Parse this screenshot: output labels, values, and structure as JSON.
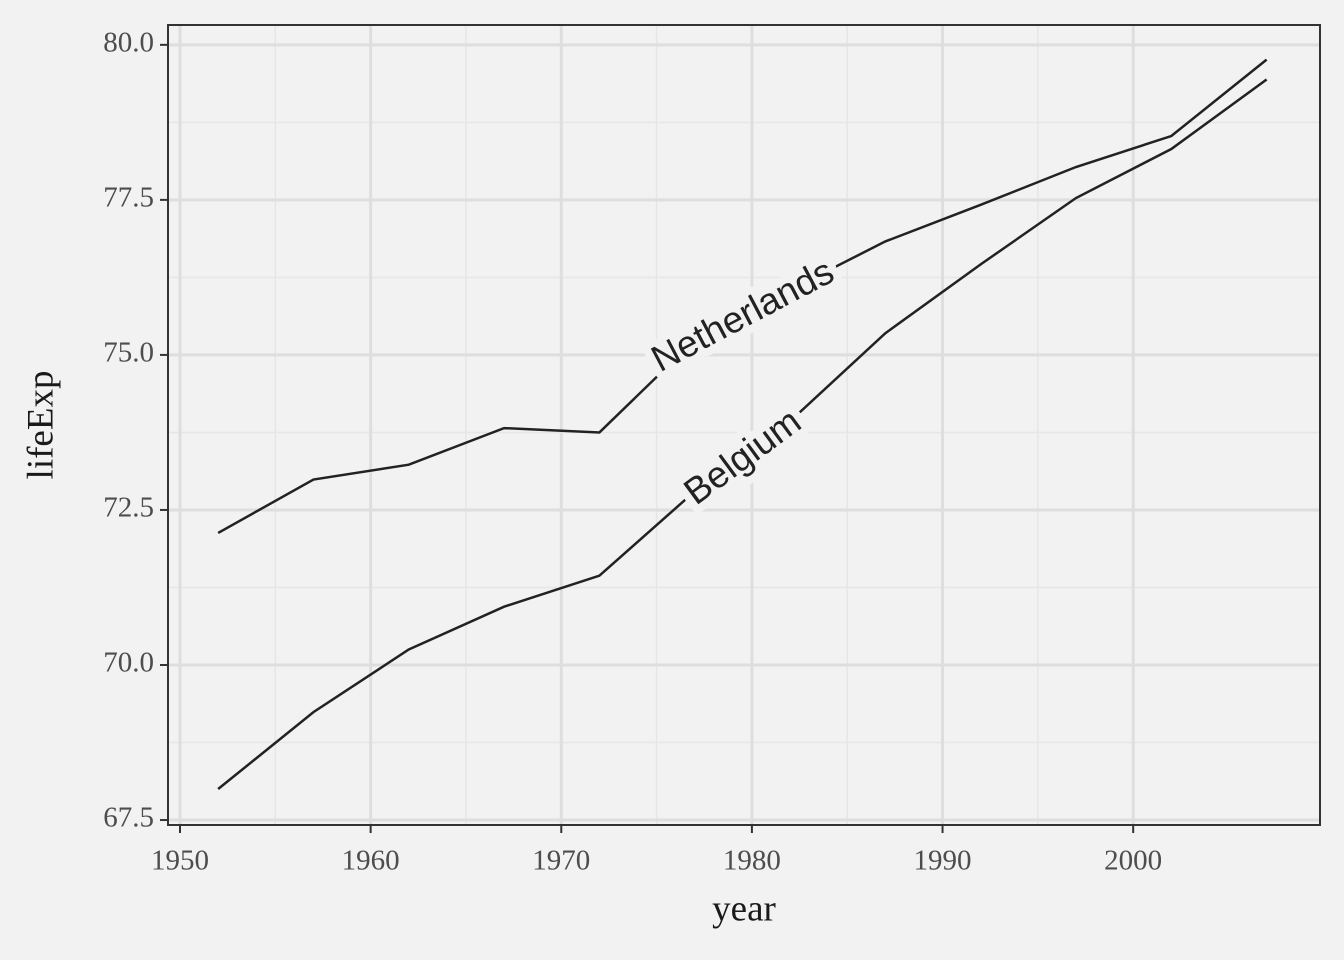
{
  "chart_data": {
    "type": "line",
    "x_label": "year",
    "y_label": "lifeExp",
    "x": [
      1952,
      1957,
      1962,
      1967,
      1972,
      1977,
      1982,
      1987,
      1992,
      1997,
      2002,
      2007
    ],
    "series": [
      {
        "name": "Belgium",
        "color": "#222222",
        "values": [
          68.0,
          69.24,
          70.25,
          70.94,
          71.44,
          72.8,
          73.93,
          75.35,
          76.46,
          77.53,
          78.32,
          79.441
        ]
      },
      {
        "name": "Netherlands",
        "color": "#222222",
        "values": [
          72.13,
          72.99,
          73.23,
          73.82,
          73.75,
          75.24,
          76.05,
          76.83,
          77.42,
          78.03,
          78.53,
          79.762
        ]
      }
    ],
    "xlim": [
      1949.37,
      2009.8
    ],
    "ylim": [
      67.42,
      80.32
    ],
    "xticks": [
      1950,
      1960,
      1970,
      1980,
      1990,
      2000
    ],
    "yticks": [
      67.5,
      {
        "value": 70,
        "label": "70.0"
      },
      72.5,
      {
        "value": 75,
        "label": "75.0"
      },
      77.5,
      {
        "value": 80,
        "label": "80.0"
      }
    ],
    "grid": true,
    "minor_grid": true
  }
}
